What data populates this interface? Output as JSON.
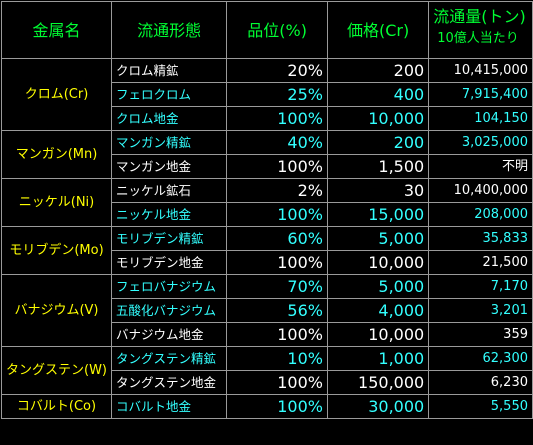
{
  "header": {
    "metal": "金属名",
    "form": "流通形態",
    "grade": "品位(%)",
    "price": "価格(Cr)",
    "flow": "流通量(トン)",
    "flow_unit": "10億人当たり"
  },
  "colors": {
    "header_green": "#00ff33",
    "metal_yellow": "#ffff00",
    "alt_cyan": "#33ffff",
    "text_white": "#ffffff",
    "border_gray": "#9a9a9a"
  },
  "metals": [
    {
      "name": "クロム(Cr)",
      "rows": [
        {
          "form": "クロム精鉱",
          "grade": "20%",
          "price": "200",
          "flow": "10,415,000",
          "color": "white"
        },
        {
          "form": "フェロクロム",
          "grade": "25%",
          "price": "400",
          "flow": "7,915,400",
          "color": "cyan"
        },
        {
          "form": "クロム地金",
          "grade": "100%",
          "price": "10,000",
          "flow": "104,150",
          "color": "cyan"
        }
      ]
    },
    {
      "name": "マンガン(Mn)",
      "rows": [
        {
          "form": "マンガン精鉱",
          "grade": "40%",
          "price": "200",
          "flow": "3,025,000",
          "color": "cyan"
        },
        {
          "form": "マンガン地金",
          "grade": "100%",
          "price": "1,500",
          "flow": "不明",
          "color": "white"
        }
      ]
    },
    {
      "name": "ニッケル(Ni)",
      "rows": [
        {
          "form": "ニッケル鉱石",
          "grade": "2%",
          "price": "30",
          "flow": "10,400,000",
          "color": "white"
        },
        {
          "form": "ニッケル地金",
          "grade": "100%",
          "price": "15,000",
          "flow": "208,000",
          "color": "cyan"
        }
      ]
    },
    {
      "name": "モリブデン(Mo)",
      "rows": [
        {
          "form": "モリブデン精鉱",
          "grade": "60%",
          "price": "5,000",
          "flow": "35,833",
          "color": "cyan"
        },
        {
          "form": "モリブデン地金",
          "grade": "100%",
          "price": "10,000",
          "flow": "21,500",
          "color": "white"
        }
      ]
    },
    {
      "name": "バナジウム(V)",
      "rows": [
        {
          "form": "フェロバナジウム",
          "grade": "70%",
          "price": "5,000",
          "flow": "7,170",
          "color": "cyan"
        },
        {
          "form": "五酸化バナジウム",
          "grade": "56%",
          "price": "4,000",
          "flow": "3,201",
          "color": "cyan"
        },
        {
          "form": "バナジウム地金",
          "grade": "100%",
          "price": "10,000",
          "flow": "359",
          "color": "white"
        }
      ]
    },
    {
      "name": "タングステン(W)",
      "rows": [
        {
          "form": "タングステン精鉱",
          "grade": "10%",
          "price": "1,000",
          "flow": "62,300",
          "color": "cyan"
        },
        {
          "form": "タングステン地金",
          "grade": "100%",
          "price": "150,000",
          "flow": "6,230",
          "color": "white"
        }
      ]
    },
    {
      "name": "コバルト(Co)",
      "rows": [
        {
          "form": "コバルト地金",
          "grade": "100%",
          "price": "30,000",
          "flow": "5,550",
          "color": "cyan"
        }
      ]
    }
  ]
}
